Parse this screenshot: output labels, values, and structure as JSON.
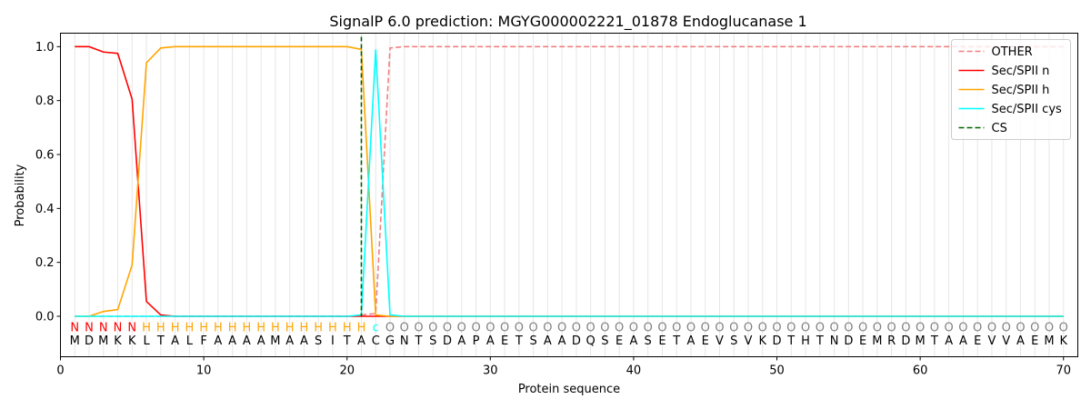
{
  "chart_data": {
    "type": "line",
    "title": "SignalP 6.0 prediction: MGYG000002221_01878 Endoglucanase 1",
    "xlabel": "Protein sequence",
    "ylabel": "Probability",
    "xlim": [
      0,
      71
    ],
    "ylim": [
      -0.15,
      1.05
    ],
    "xticks": [
      0,
      10,
      20,
      30,
      40,
      50,
      60,
      70
    ],
    "yticks": [
      0.0,
      0.2,
      0.4,
      0.6,
      0.8,
      1.0
    ],
    "xtick_labels": [
      "0",
      "10",
      "20",
      "30",
      "40",
      "50",
      "60",
      "70"
    ],
    "ytick_labels": [
      "0.0",
      "0.2",
      "0.4",
      "0.6",
      "0.8",
      "1.0"
    ],
    "grid": "vertical lines at each residue",
    "legend_position": "top-right",
    "sequence": [
      "M",
      "D",
      "M",
      "K",
      "K",
      "L",
      "T",
      "A",
      "L",
      "F",
      "A",
      "A",
      "A",
      "A",
      "M",
      "A",
      "A",
      "S",
      "I",
      "T",
      "A",
      "C",
      "G",
      "N",
      "T",
      "S",
      "D",
      "A",
      "P",
      "A",
      "E",
      "T",
      "S",
      "A",
      "A",
      "D",
      "Q",
      "S",
      "E",
      "A",
      "S",
      "E",
      "T",
      "A",
      "E",
      "V",
      "S",
      "V",
      "K",
      "D",
      "T",
      "H",
      "T",
      "N",
      "D",
      "E",
      "M",
      "R",
      "D",
      "M",
      "T",
      "A",
      "A",
      "E",
      "V",
      "V",
      "A",
      "E",
      "M",
      "K"
    ],
    "labels": [
      "N",
      "N",
      "N",
      "N",
      "N",
      "H",
      "H",
      "H",
      "H",
      "H",
      "H",
      "H",
      "H",
      "H",
      "H",
      "H",
      "H",
      "H",
      "H",
      "H",
      "H",
      "C",
      "O",
      "O",
      "O",
      "O",
      "O",
      "O",
      "O",
      "O",
      "O",
      "O",
      "O",
      "O",
      "O",
      "O",
      "O",
      "O",
      "O",
      "O",
      "O",
      "O",
      "O",
      "O",
      "O",
      "O",
      "O",
      "O",
      "O",
      "O",
      "O",
      "O",
      "O",
      "O",
      "O",
      "O",
      "O",
      "O",
      "O",
      "O",
      "O",
      "O",
      "O",
      "O",
      "O",
      "O",
      "O",
      "O",
      "O",
      "O"
    ],
    "cleavage_site": 21,
    "series": [
      {
        "name": "OTHER",
        "color": "#f08080",
        "dash": "dashed",
        "values": [
          0.0,
          0.0,
          0.0,
          0.0,
          0.0,
          0.0,
          0.0,
          0.0,
          0.0,
          0.0,
          0.0,
          0.0,
          0.0,
          0.0,
          0.0,
          0.0,
          0.0,
          0.0,
          0.0,
          0.0,
          0.005,
          0.01,
          0.995,
          1.0,
          1.0,
          1.0,
          1.0,
          1.0,
          1.0,
          1.0,
          1.0,
          1.0,
          1.0,
          1.0,
          1.0,
          1.0,
          1.0,
          1.0,
          1.0,
          1.0,
          1.0,
          1.0,
          1.0,
          1.0,
          1.0,
          1.0,
          1.0,
          1.0,
          1.0,
          1.0,
          1.0,
          1.0,
          1.0,
          1.0,
          1.0,
          1.0,
          1.0,
          1.0,
          1.0,
          1.0,
          1.0,
          1.0,
          1.0,
          1.0,
          1.0,
          1.0,
          1.0,
          1.0,
          1.0,
          1.0
        ]
      },
      {
        "name": "Sec/SPII n",
        "color": "#ff0000",
        "dash": "solid",
        "values": [
          1.0,
          1.0,
          0.98,
          0.975,
          0.805,
          0.055,
          0.005,
          0.0,
          0.0,
          0.0,
          0.0,
          0.0,
          0.0,
          0.0,
          0.0,
          0.0,
          0.0,
          0.0,
          0.0,
          0.0,
          0.0,
          0.0,
          0.0,
          0.0,
          0.0,
          0.0,
          0.0,
          0.0,
          0.0,
          0.0,
          0.0,
          0.0,
          0.0,
          0.0,
          0.0,
          0.0,
          0.0,
          0.0,
          0.0,
          0.0,
          0.0,
          0.0,
          0.0,
          0.0,
          0.0,
          0.0,
          0.0,
          0.0,
          0.0,
          0.0,
          0.0,
          0.0,
          0.0,
          0.0,
          0.0,
          0.0,
          0.0,
          0.0,
          0.0,
          0.0,
          0.0,
          0.0,
          0.0,
          0.0,
          0.0,
          0.0,
          0.0,
          0.0,
          0.0,
          0.0
        ]
      },
      {
        "name": "Sec/SPII h",
        "color": "#ffa500",
        "dash": "solid",
        "values": [
          0.0,
          0.0,
          0.018,
          0.025,
          0.19,
          0.94,
          0.995,
          1.0,
          1.0,
          1.0,
          1.0,
          1.0,
          1.0,
          1.0,
          1.0,
          1.0,
          1.0,
          1.0,
          1.0,
          1.0,
          0.99,
          0.005,
          0.0,
          0.0,
          0.0,
          0.0,
          0.0,
          0.0,
          0.0,
          0.0,
          0.0,
          0.0,
          0.0,
          0.0,
          0.0,
          0.0,
          0.0,
          0.0,
          0.0,
          0.0,
          0.0,
          0.0,
          0.0,
          0.0,
          0.0,
          0.0,
          0.0,
          0.0,
          0.0,
          0.0,
          0.0,
          0.0,
          0.0,
          0.0,
          0.0,
          0.0,
          0.0,
          0.0,
          0.0,
          0.0,
          0.0,
          0.0,
          0.0,
          0.0,
          0.0,
          0.0,
          0.0,
          0.0,
          0.0,
          0.0
        ]
      },
      {
        "name": "Sec/SPII cys",
        "color": "#00ffff",
        "dash": "solid",
        "values": [
          0.0,
          0.0,
          0.0,
          0.0,
          0.0,
          0.0,
          0.0,
          0.0,
          0.0,
          0.0,
          0.0,
          0.0,
          0.0,
          0.0,
          0.0,
          0.0,
          0.0,
          0.0,
          0.0,
          0.0,
          0.005,
          0.99,
          0.005,
          0.0,
          0.0,
          0.0,
          0.0,
          0.0,
          0.0,
          0.0,
          0.0,
          0.0,
          0.0,
          0.0,
          0.0,
          0.0,
          0.0,
          0.0,
          0.0,
          0.0,
          0.0,
          0.0,
          0.0,
          0.0,
          0.0,
          0.0,
          0.0,
          0.0,
          0.0,
          0.0,
          0.0,
          0.0,
          0.0,
          0.0,
          0.0,
          0.0,
          0.0,
          0.0,
          0.0,
          0.0,
          0.0,
          0.0,
          0.0,
          0.0,
          0.0,
          0.0,
          0.0,
          0.0,
          0.0,
          0.0
        ]
      }
    ],
    "legend": [
      {
        "name": "OTHER",
        "color": "#f08080",
        "dash": "dashed"
      },
      {
        "name": "Sec/SPII n",
        "color": "#ff0000",
        "dash": "solid"
      },
      {
        "name": "Sec/SPII h",
        "color": "#ffa500",
        "dash": "solid"
      },
      {
        "name": "Sec/SPII cys",
        "color": "#00ffff",
        "dash": "solid"
      },
      {
        "name": "CS",
        "color": "#006400",
        "dash": "dashed"
      }
    ],
    "label_colors": {
      "N": "#ff0000",
      "H": "#ffa500",
      "C": "#00ffff",
      "O": "#808080"
    }
  }
}
